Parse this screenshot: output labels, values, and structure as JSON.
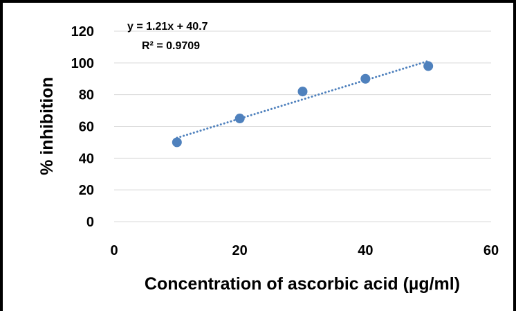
{
  "chart_data": {
    "type": "scatter",
    "xlabel": "Concentration of ascorbic acid (µg/ml)",
    "ylabel": "% inhibition",
    "xlim": [
      0,
      60
    ],
    "ylim": [
      0,
      120
    ],
    "x_ticks": [
      "0",
      "20",
      "40",
      "60"
    ],
    "y_ticks": [
      "0",
      "20",
      "40",
      "60",
      "80",
      "100",
      "120"
    ],
    "grid": "horizontal",
    "series": [
      {
        "x": [
          10,
          20,
          30,
          40,
          50
        ],
        "y": [
          50,
          65,
          82,
          90,
          98
        ],
        "color": "#4f81bd"
      }
    ],
    "trendline": {
      "kind": "linear",
      "style": "dotted",
      "slope": 1.21,
      "intercept": 40.7,
      "x_range": [
        10,
        50
      ],
      "equation": "y = 1.21x + 40.7",
      "r_squared": "R² = 0.9709"
    }
  }
}
